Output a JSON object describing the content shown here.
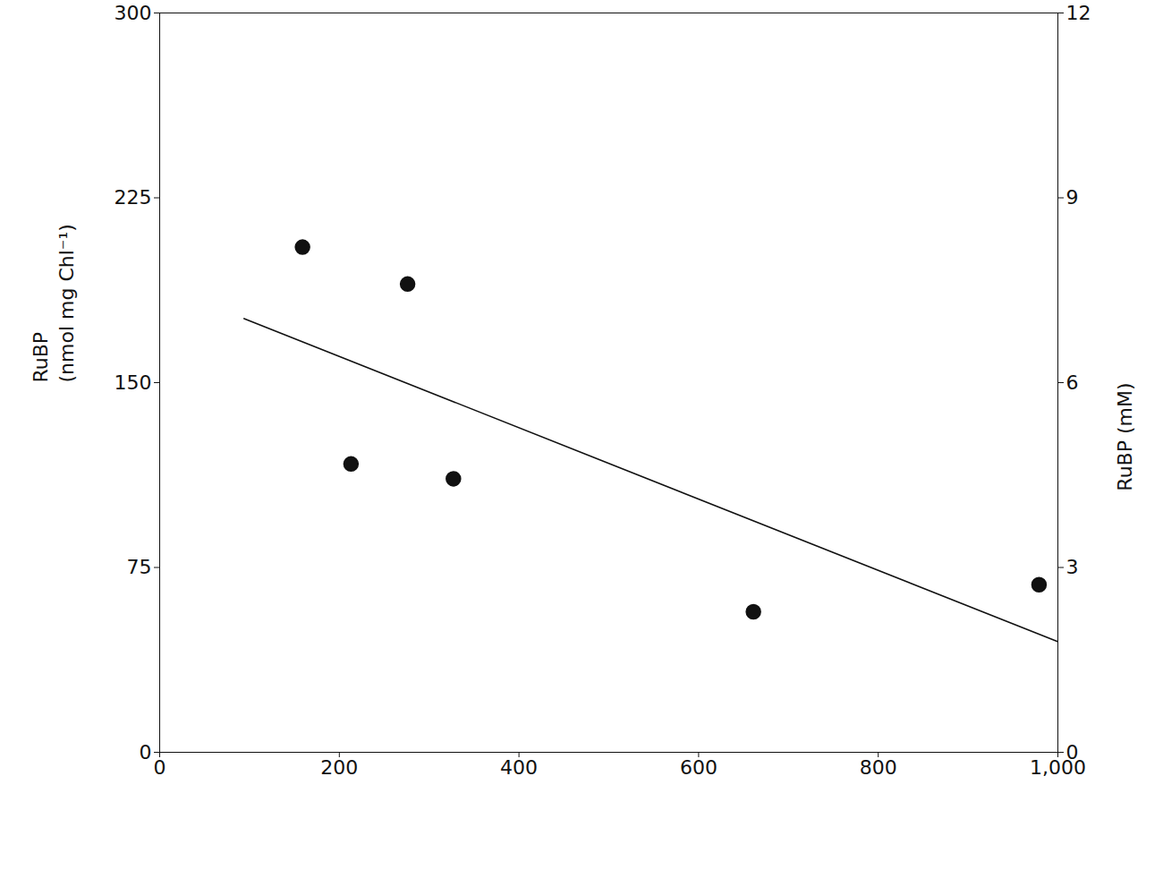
{
  "chart_data": {
    "type": "scatter",
    "y_label": "RuBP\n(nmol mg Chl⁻¹)",
    "y2_label": "RuBP (mM)",
    "xlim": [
      0,
      1000
    ],
    "xticks": [
      0,
      200,
      400,
      600,
      800,
      1000
    ],
    "ylim": [
      0,
      300
    ],
    "yticks": [
      0,
      75,
      150,
      225,
      300
    ],
    "y2lim": [
      0,
      12
    ],
    "y2ticks": [
      0,
      3,
      6,
      9,
      12
    ],
    "grid": false,
    "series": [
      {
        "type": "scatter",
        "color": "#111111",
        "marker": "circle",
        "x": [
          159,
          213,
          276,
          327,
          661,
          979
        ],
        "values": [
          205,
          117,
          190,
          111,
          57,
          68
        ]
      },
      {
        "type": "line",
        "color": "#111111",
        "line_style": "solid",
        "x": [
          94,
          999
        ],
        "values": [
          176,
          45
        ]
      }
    ]
  }
}
